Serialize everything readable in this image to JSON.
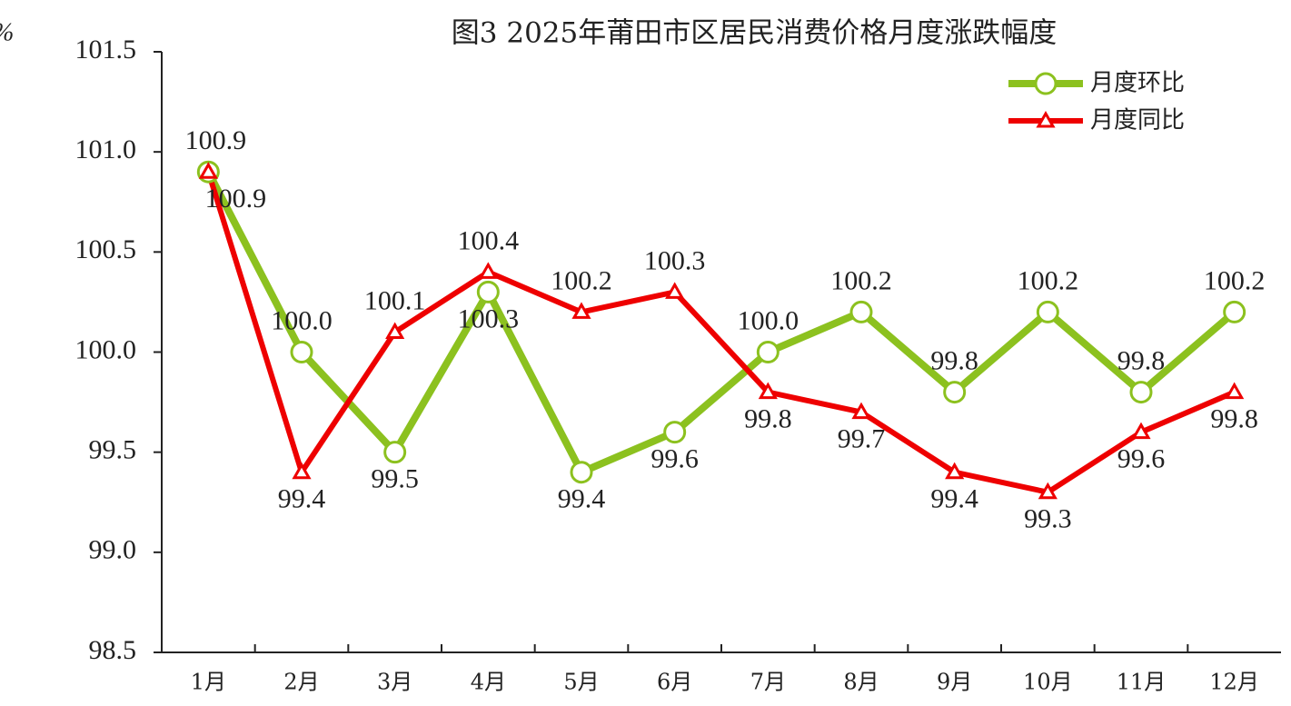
{
  "chart_data": {
    "type": "line",
    "title": "图3 2025年莆田市区居民消费价格月度涨跌幅度",
    "y_label": "%",
    "categories": [
      "1月",
      "2月",
      "3月",
      "4月",
      "5月",
      "6月",
      "7月",
      "8月",
      "9月",
      "10月",
      "11月",
      "12月"
    ],
    "series": [
      {
        "name": "月度环比",
        "color": "#8cc11f",
        "marker": "circle",
        "values": [
          100.9,
          100.0,
          99.5,
          100.3,
          99.4,
          99.6,
          100.0,
          100.2,
          99.8,
          100.2,
          99.8,
          100.2
        ],
        "value_labels": [
          "100.9",
          "100.0",
          "99.5",
          "100.3",
          "99.4",
          "99.6",
          "100.0",
          "100.2",
          "99.8",
          "100.2",
          "99.8",
          "100.2"
        ]
      },
      {
        "name": "月度同比",
        "color": "#ee0000",
        "marker": "triangle",
        "values": [
          100.9,
          99.4,
          100.1,
          100.4,
          100.2,
          100.3,
          99.8,
          99.7,
          99.4,
          99.3,
          99.6,
          99.8
        ],
        "value_labels": [
          "100.9",
          "99.4",
          "100.1",
          "100.4",
          "100.2",
          "100.3",
          "99.8",
          "99.7",
          "99.4",
          "99.3",
          "99.6",
          "99.8"
        ]
      }
    ],
    "ylim": [
      98.5,
      101.5
    ],
    "yticks": [
      98.5,
      {
        "value": 99,
        "label": "99.0"
      },
      99.5,
      {
        "value": 100,
        "label": "100.0"
      },
      100.5,
      {
        "value": 101,
        "label": "101.0"
      },
      101.5
    ],
    "grid": false,
    "legend": "upper right"
  }
}
